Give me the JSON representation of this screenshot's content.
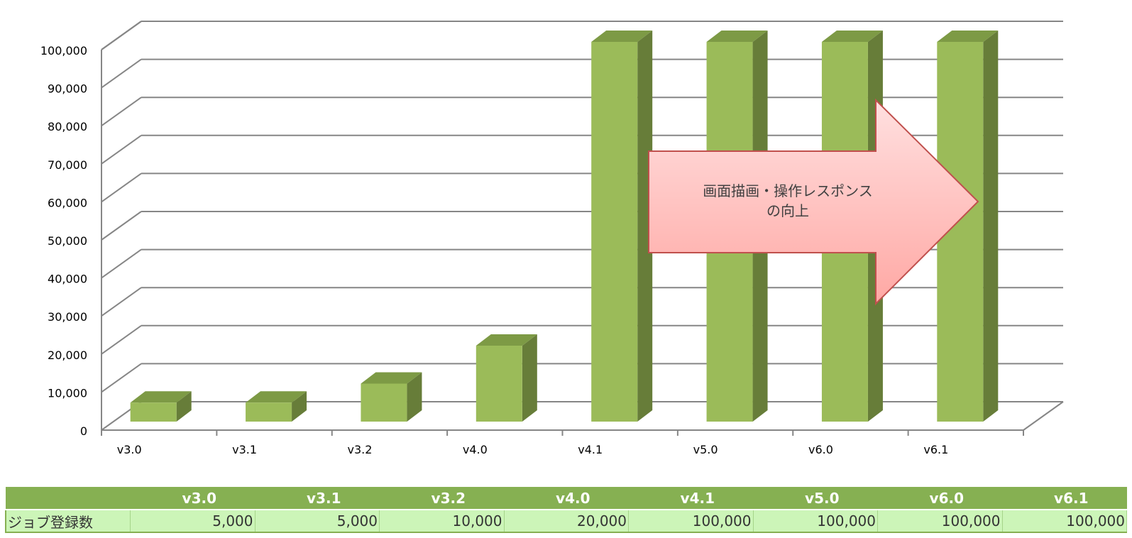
{
  "chart_data": {
    "type": "bar",
    "title": "",
    "xlabel": "",
    "ylabel": "",
    "ylim": [
      0,
      100000
    ],
    "y_ticks": [
      "0",
      "10,000",
      "20,000",
      "30,000",
      "40,000",
      "50,000",
      "60,000",
      "70,000",
      "80,000",
      "90,000",
      "100,000"
    ],
    "categories": [
      "v3.0",
      "v3.1",
      "v3.2",
      "v4.0",
      "v4.1",
      "v5.0",
      "v6.0",
      "v6.1"
    ],
    "values": [
      5000,
      5000,
      10000,
      20000,
      100000,
      100000,
      100000,
      100000
    ],
    "style": "3d-column",
    "grid": true,
    "legend": "none",
    "colors": {
      "bar_front": "#9bbb59",
      "bar_side": "#677d39",
      "bar_top": "#7d9a45",
      "grid": "#868686"
    },
    "annotation": {
      "shape": "right-arrow",
      "line1": "画面描画・操作レスポンス",
      "line2": "の向上",
      "fill_top": "#ffe0e0",
      "fill_bottom": "#ffa8a4",
      "stroke": "#c0504d"
    }
  },
  "data_table": {
    "row_label": "ジョブ登録数",
    "headers": [
      "v3.0",
      "v3.1",
      "v3.2",
      "v4.0",
      "v4.1",
      "v5.0",
      "v6.0",
      "v6.1"
    ],
    "values": [
      "5,000",
      "5,000",
      "10,000",
      "20,000",
      "100,000",
      "100,000",
      "100,000",
      "100,000"
    ]
  }
}
